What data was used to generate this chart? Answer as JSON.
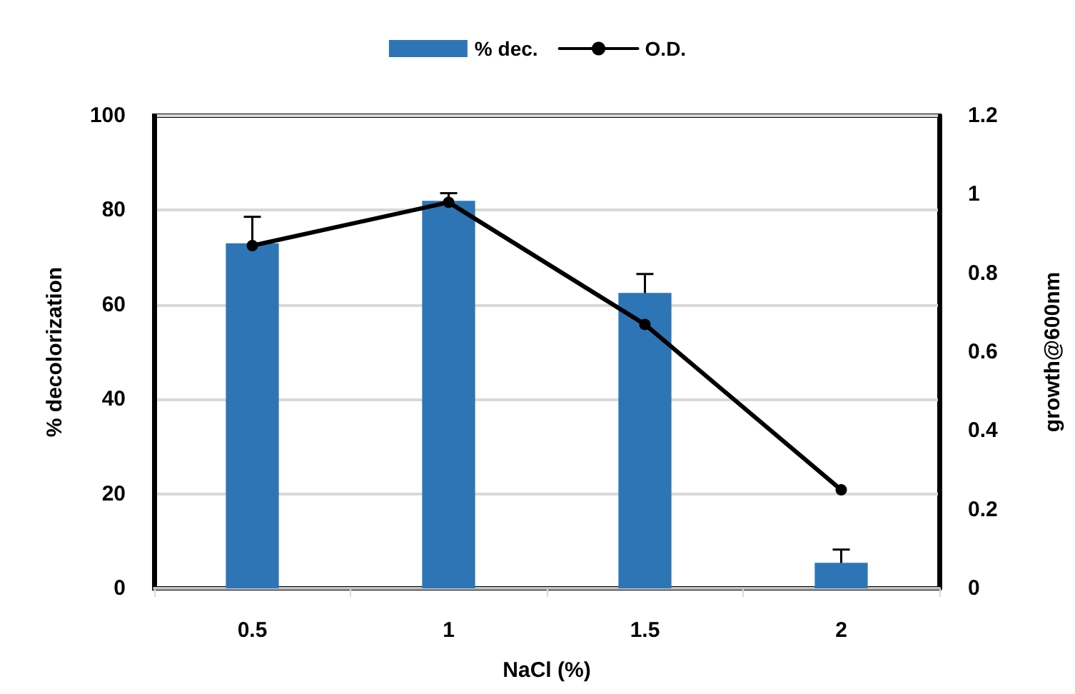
{
  "chart_data": {
    "type": "bar",
    "xlabel": "NaCl (%)",
    "ylabel": "% decolorization",
    "y2label": "growth@600nm",
    "categories": [
      "0.5",
      "1",
      "1.5",
      "2"
    ],
    "series": [
      {
        "name": "% dec.",
        "type": "bar",
        "color": "#2e75b6",
        "values": [
          73,
          82,
          62.5,
          5.4
        ],
        "errors": [
          5.6,
          1.6,
          4,
          2.8
        ]
      },
      {
        "name": "O.D.",
        "type": "line",
        "axis": "y2",
        "color": "#000000",
        "marker": "circle",
        "values": [
          0.87,
          0.98,
          0.67,
          0.25
        ]
      }
    ],
    "ylim": [
      0,
      100
    ],
    "yticks": [
      0,
      20,
      40,
      60,
      80,
      100
    ],
    "y2lim": [
      0,
      1.2
    ],
    "y2ticks": [
      0,
      0.2,
      0.4,
      0.6,
      0.8,
      1,
      1.2
    ],
    "grid": "y",
    "legend": "top"
  }
}
